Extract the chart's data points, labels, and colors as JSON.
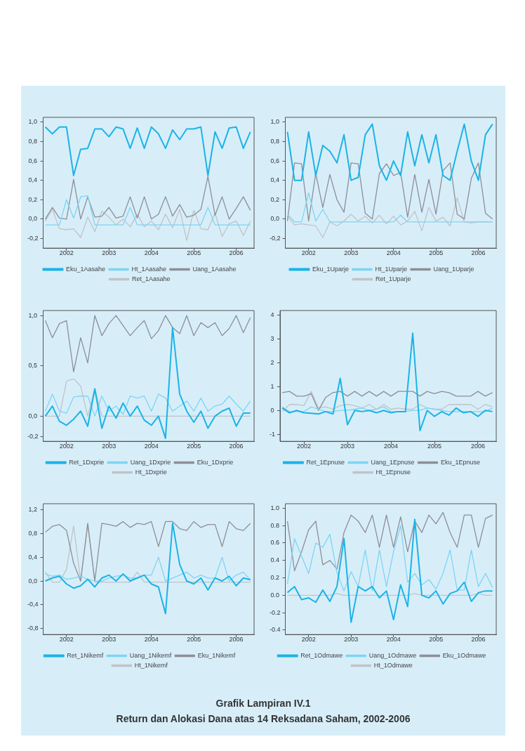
{
  "chart_data": [
    {
      "type": "line",
      "legend": "bottom",
      "x": [
        2002.0,
        2002.167,
        2002.333,
        2002.5,
        2002.667,
        2002.833,
        2003.0,
        2003.167,
        2003.333,
        2003.5,
        2003.667,
        2003.833,
        2004.0,
        2004.167,
        2004.333,
        2004.5,
        2004.667,
        2004.833,
        2005.0,
        2005.167,
        2005.333,
        2005.5,
        2005.667,
        2005.833,
        2006.0,
        2006.167,
        2006.333,
        2006.5,
        2006.667,
        2006.833
      ],
      "xlim": [
        2001.95,
        2006.92
      ],
      "xticks": [
        {
          "value": 2002.5,
          "label": "2002"
        },
        {
          "value": 2003.5,
          "label": "2003"
        },
        {
          "value": 2004.5,
          "label": "2004"
        },
        {
          "value": 2005.5,
          "label": "2005"
        },
        {
          "value": 2006.5,
          "label": "2006"
        }
      ],
      "ylim": [
        -0.3,
        1.05
      ],
      "yticks": [
        {
          "value": -0.2,
          "label": "-0,2"
        },
        {
          "value": 0,
          "label": "0,0"
        },
        {
          "value": 0.2,
          "label": "0,2"
        },
        {
          "value": 0.4,
          "label": "0,4"
        },
        {
          "value": 0.6,
          "label": "0,6"
        },
        {
          "value": 0.8,
          "label": "0,8"
        },
        {
          "value": 1.0,
          "label": "1,0"
        }
      ],
      "series": [
        {
          "name": "Eku_1Aasahe",
          "color": "#1cb3e6",
          "values": [
            0.95,
            0.88,
            0.95,
            0.95,
            0.45,
            0.72,
            0.73,
            0.93,
            0.93,
            0.85,
            0.95,
            0.93,
            0.73,
            0.94,
            0.73,
            0.95,
            0.88,
            0.73,
            0.92,
            0.82,
            0.93,
            0.93,
            0.95,
            0.45,
            0.9,
            0.73,
            0.94,
            0.95,
            0.73,
            0.9
          ]
        },
        {
          "name": "Ht_1Aasahe",
          "color": "#7fd4f2",
          "values": [
            -0.06,
            -0.06,
            -0.06,
            0.2,
            0.01,
            0.23,
            0.24,
            -0.06,
            -0.06,
            -0.06,
            -0.06,
            -0.06,
            0.12,
            -0.06,
            -0.06,
            -0.06,
            -0.06,
            -0.06,
            -0.06,
            -0.06,
            -0.06,
            -0.06,
            -0.06,
            0.12,
            -0.06,
            -0.06,
            -0.06,
            -0.06,
            -0.06,
            -0.06
          ]
        },
        {
          "name": "Uang_1Aasahe",
          "color": "#8e8e96",
          "values": [
            0.0,
            0.12,
            0.01,
            0.0,
            0.41,
            0.0,
            0.23,
            0.02,
            0.03,
            0.12,
            0.01,
            0.03,
            0.23,
            0.01,
            0.23,
            0.0,
            0.05,
            0.23,
            0.03,
            0.15,
            0.02,
            0.04,
            0.1,
            0.44,
            0.04,
            0.23,
            0.0,
            0.11,
            0.23,
            0.09
          ]
        },
        {
          "name": "Ret_1Aasahe",
          "color": "#c2c2c6",
          "values": [
            -0.02,
            0.1,
            -0.1,
            -0.11,
            -0.1,
            -0.19,
            0.02,
            -0.13,
            0.08,
            0.02,
            -0.06,
            0.0,
            -0.08,
            0.05,
            -0.08,
            -0.02,
            -0.11,
            0.05,
            -0.09,
            0.1,
            -0.22,
            0.09,
            -0.1,
            -0.11,
            0.06,
            -0.18,
            -0.05,
            -0.02,
            -0.17,
            -0.02
          ]
        }
      ]
    },
    {
      "type": "line",
      "legend": "bottom",
      "x": [
        2002.0,
        2002.167,
        2002.333,
        2002.5,
        2002.667,
        2002.833,
        2003.0,
        2003.167,
        2003.333,
        2003.5,
        2003.667,
        2003.833,
        2004.0,
        2004.167,
        2004.333,
        2004.5,
        2004.667,
        2004.833,
        2005.0,
        2005.167,
        2005.333,
        2005.5,
        2005.667,
        2005.833,
        2006.0,
        2006.167,
        2006.333,
        2006.5,
        2006.667,
        2006.833
      ],
      "xlim": [
        2001.95,
        2006.92
      ],
      "xticks": [
        {
          "value": 2002.5,
          "label": "2002"
        },
        {
          "value": 2003.5,
          "label": "2003"
        },
        {
          "value": 2004.5,
          "label": "2004"
        },
        {
          "value": 2005.5,
          "label": "2005"
        },
        {
          "value": 2006.5,
          "label": "2006"
        }
      ],
      "ylim": [
        -0.3,
        1.05
      ],
      "yticks": [
        {
          "value": -0.2,
          "label": "-0,2"
        },
        {
          "value": 0,
          "label": "0,0"
        },
        {
          "value": 0.2,
          "label": "0,2"
        },
        {
          "value": 0.4,
          "label": "0,4"
        },
        {
          "value": 0.6,
          "label": "0,6"
        },
        {
          "value": 0.8,
          "label": "0,8"
        },
        {
          "value": 1.0,
          "label": "1,0"
        }
      ],
      "series": [
        {
          "name": "Eku_1Uparje",
          "color": "#1cb3e6",
          "values": [
            0.9,
            0.4,
            0.4,
            0.9,
            0.45,
            0.76,
            0.7,
            0.58,
            0.87,
            0.4,
            0.43,
            0.87,
            0.98,
            0.55,
            0.4,
            0.6,
            0.45,
            0.9,
            0.55,
            0.87,
            0.58,
            0.87,
            0.45,
            0.4,
            0.7,
            0.98,
            0.6,
            0.4,
            0.87,
            0.98
          ]
        },
        {
          "name": "Ht_1Uparje",
          "color": "#7fd4f2",
          "values": [
            0.05,
            -0.03,
            -0.03,
            0.27,
            -0.02,
            0.1,
            -0.03,
            -0.03,
            -0.03,
            -0.03,
            -0.03,
            -0.03,
            -0.03,
            -0.03,
            -0.03,
            -0.03,
            0.04,
            -0.03,
            -0.03,
            -0.03,
            -0.03,
            -0.03,
            -0.03,
            -0.03,
            -0.03,
            -0.03,
            -0.03,
            -0.03,
            -0.03,
            -0.03
          ]
        },
        {
          "name": "Uang_1Uparje",
          "color": "#8e8e96",
          "values": [
            -0.02,
            0.58,
            0.57,
            -0.02,
            0.47,
            0.12,
            0.46,
            0.2,
            0.07,
            0.58,
            0.57,
            0.06,
            0.0,
            0.47,
            0.57,
            0.45,
            0.48,
            0.02,
            0.46,
            0.07,
            0.41,
            0.05,
            0.5,
            0.58,
            0.05,
            0.0,
            0.42,
            0.58,
            0.06,
            0.0
          ]
        },
        {
          "name": "Ret_1Uparje",
          "color": "#c2c2c6",
          "values": [
            0.03,
            -0.06,
            -0.05,
            -0.06,
            -0.07,
            -0.19,
            -0.03,
            -0.07,
            -0.02,
            0.05,
            -0.02,
            0.03,
            -0.04,
            0.04,
            -0.05,
            0.03,
            -0.06,
            -0.02,
            0.08,
            -0.12,
            0.12,
            -0.02,
            0.02,
            -0.07,
            0.22,
            -0.03,
            -0.04,
            -0.03,
            -0.03,
            -0.03
          ]
        }
      ]
    },
    {
      "type": "line",
      "legend": "bottom",
      "x": [
        2002.0,
        2002.167,
        2002.333,
        2002.5,
        2002.667,
        2002.833,
        2003.0,
        2003.167,
        2003.333,
        2003.5,
        2003.667,
        2003.833,
        2004.0,
        2004.167,
        2004.333,
        2004.5,
        2004.667,
        2004.833,
        2005.0,
        2005.167,
        2005.333,
        2005.5,
        2005.667,
        2005.833,
        2006.0,
        2006.167,
        2006.333,
        2006.5,
        2006.667,
        2006.833
      ],
      "xlim": [
        2001.95,
        2006.92
      ],
      "xticks": [
        {
          "value": 2002.5,
          "label": "2002"
        },
        {
          "value": 2003.5,
          "label": "2003"
        },
        {
          "value": 2004.5,
          "label": "2004"
        },
        {
          "value": 2005.5,
          "label": "2005"
        },
        {
          "value": 2006.5,
          "label": "2006"
        }
      ],
      "ylim": [
        -0.25,
        1.05
      ],
      "yticks": [
        {
          "value": -0.2,
          "label": "-0,2"
        },
        {
          "value": 0,
          "label": "0,0"
        },
        {
          "value": 0.5,
          "label": "0,5"
        },
        {
          "value": 1.0,
          "label": "1,0"
        }
      ],
      "series": [
        {
          "name": "Ret_1Dxprie",
          "color": "#1cb3e6",
          "values": [
            0.0,
            0.1,
            -0.05,
            -0.09,
            -0.03,
            0.05,
            -0.1,
            0.27,
            -0.12,
            0.1,
            -0.02,
            0.13,
            0.0,
            0.1,
            -0.04,
            -0.09,
            0.0,
            -0.22,
            0.88,
            0.22,
            0.05,
            -0.06,
            0.05,
            -0.12,
            0.0,
            0.05,
            0.08,
            -0.1,
            0.03,
            0.03
          ]
        },
        {
          "name": "Uang_1Dxprie",
          "color": "#7fd4f2",
          "values": [
            0.05,
            0.22,
            0.05,
            0.03,
            0.19,
            0.2,
            0.2,
            0.0,
            0.2,
            0.05,
            0.1,
            0.02,
            0.2,
            0.18,
            0.2,
            0.05,
            0.22,
            0.18,
            0.05,
            0.1,
            0.15,
            0.05,
            0.18,
            0.05,
            0.1,
            0.12,
            0.2,
            0.12,
            0.05,
            0.15
          ]
        },
        {
          "name": "Eku_1Dxprie",
          "color": "#8e8e96",
          "values": [
            0.95,
            0.78,
            0.92,
            0.95,
            0.44,
            0.78,
            0.53,
            1.0,
            0.8,
            0.92,
            1.0,
            0.9,
            0.8,
            0.88,
            0.95,
            0.77,
            0.85,
            1.0,
            0.88,
            0.82,
            1.0,
            0.8,
            0.93,
            0.88,
            0.93,
            0.8,
            0.87,
            1.0,
            0.83,
            0.98
          ]
        },
        {
          "name": "Ht_1Dxprie",
          "color": "#c2c2c6",
          "values": [
            0.0,
            0.0,
            0.0,
            0.35,
            0.37,
            0.3,
            0.0,
            0.28,
            0.0,
            0.0,
            0.0,
            0.0,
            0.0,
            0.0,
            0.0,
            0.0,
            0.0,
            0.0,
            0.0,
            0.0,
            0.0,
            0.0,
            0.0,
            0.0,
            0.0,
            0.0,
            0.0,
            0.0,
            0.0,
            0.0
          ]
        }
      ]
    },
    {
      "type": "line",
      "legend": "bottom",
      "x": [
        2002.0,
        2002.167,
        2002.333,
        2002.5,
        2002.667,
        2002.833,
        2003.0,
        2003.167,
        2003.333,
        2003.5,
        2003.667,
        2003.833,
        2004.0,
        2004.167,
        2004.333,
        2004.5,
        2004.667,
        2004.833,
        2005.0,
        2005.167,
        2005.333,
        2005.5,
        2005.667,
        2005.833,
        2006.0,
        2006.167,
        2006.333,
        2006.5,
        2006.667,
        2006.833
      ],
      "xlim": [
        2001.95,
        2006.92
      ],
      "xticks": [
        {
          "value": 2002.5,
          "label": "2002"
        },
        {
          "value": 2003.5,
          "label": "2003"
        },
        {
          "value": 2004.5,
          "label": "2004"
        },
        {
          "value": 2005.5,
          "label": "2005"
        },
        {
          "value": 2006.5,
          "label": "2006"
        }
      ],
      "ylim": [
        -1.3,
        4.2
      ],
      "yticks": [
        -1,
        0,
        1,
        2,
        3,
        4
      ],
      "series": [
        {
          "name": "Ret_1Epnuse",
          "color": "#1cb3e6",
          "values": [
            0.1,
            -0.1,
            0.0,
            -0.1,
            -0.12,
            -0.15,
            -0.05,
            -0.15,
            1.35,
            -0.6,
            0.0,
            -0.05,
            0.0,
            -0.1,
            0.0,
            -0.1,
            -0.05,
            -0.05,
            3.25,
            -0.85,
            0.0,
            -0.25,
            -0.05,
            -0.2,
            0.1,
            -0.1,
            -0.05,
            -0.25,
            0.0,
            -0.05
          ]
        },
        {
          "name": "Uang_1Epnuse",
          "color": "#7fd4f2",
          "values": [
            0.15,
            -0.05,
            -0.05,
            -0.05,
            0.15,
            0.05,
            -0.05,
            -0.05,
            0.0,
            0.0,
            0.05,
            0.1,
            0.0,
            0.05,
            0.15,
            -0.05,
            -0.05,
            -0.05,
            0.0,
            0.0,
            0.1,
            0.05,
            0.0,
            -0.05,
            -0.05,
            -0.05,
            -0.05,
            -0.05,
            -0.05,
            0.1
          ]
        },
        {
          "name": "Eku_1Epnuse",
          "color": "#8e8e96",
          "values": [
            0.75,
            0.8,
            0.6,
            0.6,
            0.7,
            0.0,
            0.55,
            0.75,
            0.8,
            0.6,
            0.8,
            0.6,
            0.8,
            0.6,
            0.8,
            0.6,
            0.8,
            0.8,
            0.8,
            0.6,
            0.8,
            0.7,
            0.8,
            0.75,
            0.6,
            0.6,
            0.6,
            0.8,
            0.6,
            0.75
          ]
        },
        {
          "name": "Ht_1Epnuse",
          "color": "#c2c2c6",
          "values": [
            -0.05,
            0.25,
            0.25,
            0.2,
            0.8,
            0.1,
            0.15,
            0.05,
            0.2,
            0.25,
            0.2,
            0.1,
            0.25,
            0.05,
            0.25,
            0.05,
            0.1,
            0.05,
            0.05,
            0.25,
            0.1,
            0.05,
            0.05,
            0.25,
            0.25,
            0.25,
            0.25,
            0.05,
            0.25,
            0.15
          ]
        }
      ]
    },
    {
      "type": "line",
      "legend": "bottom",
      "x": [
        2002.0,
        2002.167,
        2002.333,
        2002.5,
        2002.667,
        2002.833,
        2003.0,
        2003.167,
        2003.333,
        2003.5,
        2003.667,
        2003.833,
        2004.0,
        2004.167,
        2004.333,
        2004.5,
        2004.667,
        2004.833,
        2005.0,
        2005.167,
        2005.333,
        2005.5,
        2005.667,
        2005.833,
        2006.0,
        2006.167,
        2006.333,
        2006.5,
        2006.667,
        2006.833
      ],
      "xlim": [
        2001.95,
        2006.92
      ],
      "xticks": [
        {
          "value": 2002.5,
          "label": "2002"
        },
        {
          "value": 2003.5,
          "label": "2003"
        },
        {
          "value": 2004.5,
          "label": "2004"
        },
        {
          "value": 2005.5,
          "label": "2005"
        },
        {
          "value": 2006.5,
          "label": "2006"
        }
      ],
      "ylim": [
        -0.9,
        1.3
      ],
      "yticks": [
        {
          "value": -0.8,
          "label": "-0,8"
        },
        {
          "value": -0.4,
          "label": "-0,4"
        },
        {
          "value": 0,
          "label": "0,0"
        },
        {
          "value": 0.4,
          "label": "0,4"
        },
        {
          "value": 0.8,
          "label": "0,8"
        },
        {
          "value": 1.2,
          "label": "1,2"
        }
      ],
      "series": [
        {
          "name": "Ret_1Nikemf",
          "color": "#1cb3e6",
          "values": [
            0.0,
            0.05,
            0.08,
            -0.05,
            -0.12,
            -0.08,
            0.03,
            -0.1,
            0.05,
            0.1,
            0.0,
            0.12,
            0.0,
            0.05,
            0.1,
            -0.05,
            -0.1,
            -0.55,
            0.97,
            0.28,
            0.0,
            -0.05,
            0.05,
            -0.15,
            0.05,
            0.0,
            0.08,
            -0.08,
            0.05,
            0.02
          ]
        },
        {
          "name": "Uang_1Nikemf",
          "color": "#7fd4f2",
          "values": [
            0.12,
            0.08,
            0.1,
            0.03,
            0.05,
            0.08,
            0.03,
            0.0,
            0.0,
            0.05,
            0.08,
            0.1,
            0.05,
            0.05,
            0.1,
            0.1,
            0.4,
            0.0,
            0.05,
            0.1,
            0.15,
            0.05,
            0.1,
            0.05,
            0.05,
            0.4,
            0.0,
            0.1,
            0.15,
            0.02
          ]
        },
        {
          "name": "Eku_1Nikemf",
          "color": "#8e8e96",
          "values": [
            0.82,
            0.92,
            0.95,
            0.85,
            0.3,
            0.0,
            0.97,
            0.0,
            0.97,
            0.95,
            0.92,
            1.0,
            0.9,
            0.97,
            0.95,
            1.0,
            0.58,
            1.0,
            1.0,
            0.88,
            0.85,
            1.0,
            0.9,
            0.95,
            0.95,
            0.58,
            1.0,
            0.88,
            0.85,
            0.97
          ]
        },
        {
          "name": "Ht_1Nikemf",
          "color": "#c2c2c6",
          "values": [
            0.15,
            -0.02,
            -0.02,
            0.2,
            0.93,
            0.0,
            0.95,
            -0.02,
            -0.02,
            -0.02,
            -0.02,
            -0.02,
            -0.02,
            0.15,
            -0.02,
            -0.02,
            -0.02,
            -0.02,
            -0.02,
            -0.02,
            -0.02,
            -0.02,
            -0.02,
            -0.02,
            -0.02,
            -0.02,
            -0.02,
            -0.02,
            -0.02,
            -0.02
          ]
        }
      ]
    },
    {
      "type": "line",
      "legend": "bottom",
      "x": [
        2002.0,
        2002.167,
        2002.333,
        2002.5,
        2002.667,
        2002.833,
        2003.0,
        2003.167,
        2003.333,
        2003.5,
        2003.667,
        2003.833,
        2004.0,
        2004.167,
        2004.333,
        2004.5,
        2004.667,
        2004.833,
        2005.0,
        2005.167,
        2005.333,
        2005.5,
        2005.667,
        2005.833,
        2006.0,
        2006.167,
        2006.333,
        2006.5,
        2006.667,
        2006.833
      ],
      "xlim": [
        2001.95,
        2006.92
      ],
      "xticks": [
        {
          "value": 2002.5,
          "label": "2002"
        },
        {
          "value": 2003.5,
          "label": "2003"
        },
        {
          "value": 2004.5,
          "label": "2004"
        },
        {
          "value": 2005.5,
          "label": "2005"
        },
        {
          "value": 2006.5,
          "label": "2006"
        }
      ],
      "ylim": [
        -0.45,
        1.05
      ],
      "yticks": [
        {
          "value": -0.4,
          "label": "-0.4"
        },
        {
          "value": -0.2,
          "label": "-0.2"
        },
        {
          "value": 0,
          "label": "0.0"
        },
        {
          "value": 0.2,
          "label": "0.2"
        },
        {
          "value": 0.4,
          "label": "0.4"
        },
        {
          "value": 0.6,
          "label": "0.6"
        },
        {
          "value": 0.8,
          "label": "0.8"
        },
        {
          "value": 1.0,
          "label": "1.0"
        }
      ],
      "series": [
        {
          "name": "Ret_1Odmawe",
          "color": "#1cb3e6",
          "values": [
            0.03,
            0.1,
            -0.05,
            -0.03,
            -0.08,
            0.06,
            -0.07,
            0.1,
            0.65,
            -0.31,
            0.1,
            0.05,
            0.1,
            -0.03,
            0.05,
            -0.28,
            0.12,
            -0.13,
            0.87,
            0.0,
            -0.03,
            0.05,
            -0.1,
            0.02,
            0.05,
            0.15,
            -0.07,
            0.03,
            0.05,
            0.05
          ]
        },
        {
          "name": "Uang_1Odmawe",
          "color": "#7fd4f2",
          "values": [
            0.13,
            0.65,
            0.45,
            0.25,
            0.6,
            0.55,
            0.7,
            0.26,
            0.05,
            0.27,
            0.1,
            0.52,
            0.05,
            0.52,
            0.1,
            0.5,
            0.8,
            0.15,
            0.25,
            0.12,
            0.18,
            0.07,
            0.25,
            0.52,
            0.06,
            0.06,
            0.52,
            0.1,
            0.25,
            0.09
          ]
        },
        {
          "name": "Eku_1Odmawe",
          "color": "#8e8e96",
          "values": [
            0.85,
            0.28,
            0.5,
            0.75,
            0.85,
            0.35,
            0.4,
            0.3,
            0.72,
            0.92,
            0.85,
            0.72,
            0.92,
            0.55,
            0.92,
            0.55,
            0.9,
            0.5,
            0.85,
            0.72,
            0.92,
            0.82,
            0.95,
            0.72,
            0.55,
            0.92,
            0.92,
            0.55,
            0.88,
            0.92
          ]
        },
        {
          "name": "Ht_1Odmawe",
          "color": "#c2c2c6",
          "values": [
            0.0,
            0.0,
            0.0,
            0.0,
            0.0,
            0.0,
            0.0,
            0.02,
            0.0,
            0.0,
            0.0,
            0.0,
            0.0,
            0.0,
            0.0,
            0.0,
            0.0,
            0.0,
            0.02,
            0.0,
            0.0,
            0.0,
            0.0,
            0.0,
            0.0,
            0.0,
            0.0,
            0.02,
            0.0,
            0.0
          ]
        }
      ],
      "annotations": [
        "Grafik Lampiran IV.1",
        "Return dan Alokasi Dana atas 14 Reksadana Saham, 2002-2006"
      ]
    }
  ]
}
